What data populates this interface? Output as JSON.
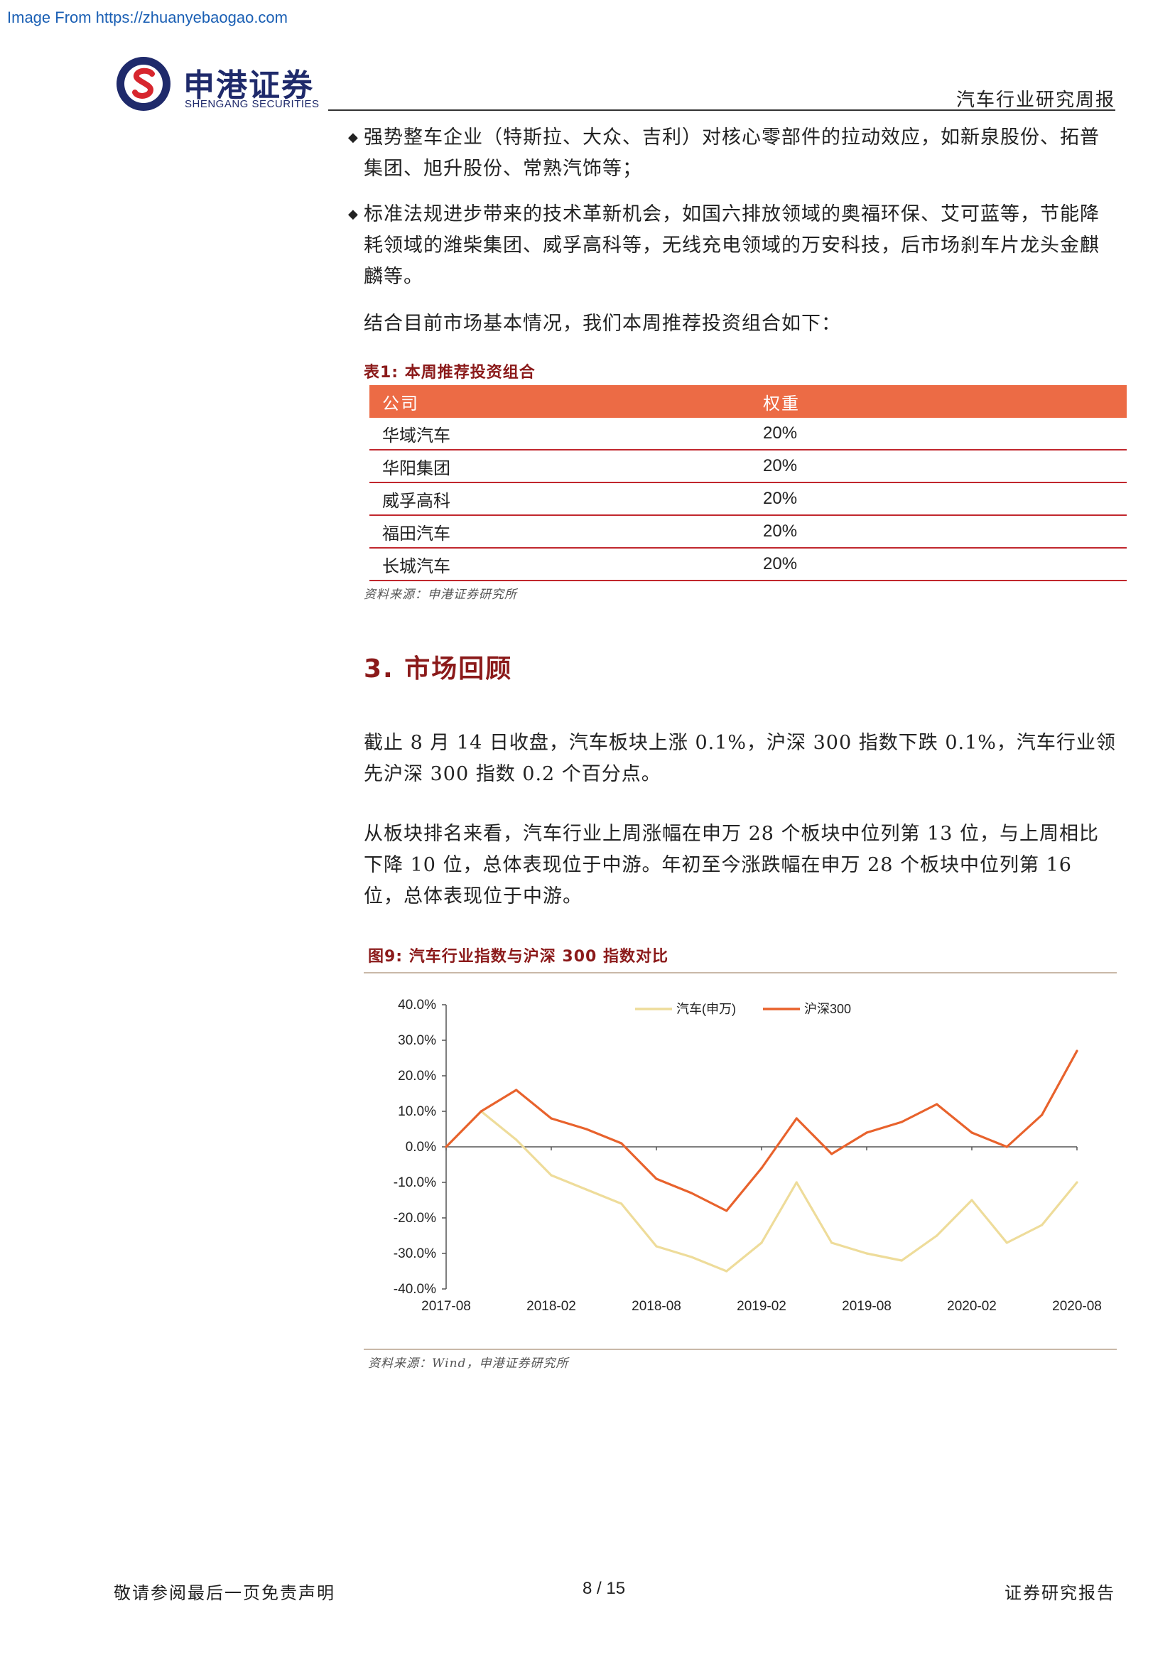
{
  "watermark": "Image From https://zhuanyebaogao.com",
  "logo": {
    "cn": "申港证券",
    "en": "SHENGANG SECURITIES"
  },
  "header": {
    "title": "汽车行业研究周报"
  },
  "bullets": [
    "强势整车企业（特斯拉、大众、吉利）对核心零部件的拉动效应，如新泉股份、拓普集团、旭升股份、常熟汽饰等；",
    "标准法规进步带来的技术革新机会，如国六排放领域的奥福环保、艾可蓝等，节能降耗领域的潍柴集团、威孚高科等，无线充电领域的万安科技，后市场刹车片龙头金麒麟等。"
  ],
  "intro": "结合目前市场基本情况，我们本周推荐投资组合如下：",
  "table1": {
    "caption": "表1:  本周推荐投资组合",
    "headers": [
      "公司",
      "权重"
    ],
    "rows": [
      [
        "华域汽车",
        "20%"
      ],
      [
        "华阳集团",
        "20%"
      ],
      [
        "威孚高科",
        "20%"
      ],
      [
        "福田汽车",
        "20%"
      ],
      [
        "长城汽车",
        "20%"
      ]
    ],
    "source": "资料来源：申港证券研究所"
  },
  "section": {
    "title": "3. 市场回顾"
  },
  "paragraphs": [
    "截止 8 月 14 日收盘，汽车板块上涨 0.1%，沪深 300 指数下跌 0.1%，汽车行业领先沪深 300 指数 0.2 个百分点。",
    "从板块排名来看，汽车行业上周涨幅在申万 28 个板块中位列第 13 位，与上周相比下降 10 位，总体表现位于中游。年初至今涨跌幅在申万 28 个板块中位列第 16 位，总体表现位于中游。"
  ],
  "figure9": {
    "caption": "图9:  汽车行业指数与沪深 300 指数对比",
    "source": "资料来源：Wind，申港证券研究所"
  },
  "chart_data": {
    "type": "line",
    "title": "",
    "xlabel": "",
    "ylabel": "",
    "ylim": [
      -40,
      40
    ],
    "yticks": [
      "40.0%",
      "30.0%",
      "20.0%",
      "10.0%",
      "0.0%",
      "-10.0%",
      "-20.0%",
      "-30.0%",
      "-40.0%"
    ],
    "xticks": [
      "2017-08",
      "2018-02",
      "2018-08",
      "2019-02",
      "2019-08",
      "2020-02",
      "2020-08"
    ],
    "legend_position": "top-center",
    "x": [
      "2017-08",
      "2017-10",
      "2017-12",
      "2018-02",
      "2018-04",
      "2018-06",
      "2018-08",
      "2018-10",
      "2018-12",
      "2019-02",
      "2019-04",
      "2019-06",
      "2019-08",
      "2019-10",
      "2019-12",
      "2020-02",
      "2020-04",
      "2020-06",
      "2020-08"
    ],
    "series": [
      {
        "name": "汽车(申万)",
        "color": "#eedc9a",
        "values": [
          0,
          10,
          2,
          -8,
          -12,
          -16,
          -28,
          -31,
          -35,
          -27,
          -10,
          -27,
          -30,
          -32,
          -25,
          -15,
          -27,
          -22,
          -10
        ]
      },
      {
        "name": "沪深300",
        "color": "#e8622c",
        "values": [
          0,
          10,
          16,
          8,
          5,
          1,
          -9,
          -13,
          -18,
          -6,
          8,
          -2,
          4,
          7,
          12,
          4,
          0,
          9,
          27
        ]
      }
    ]
  },
  "footer": {
    "left": "敬请参阅最后一页免责声明",
    "center": "8 / 15",
    "right": "证券研究报告"
  }
}
